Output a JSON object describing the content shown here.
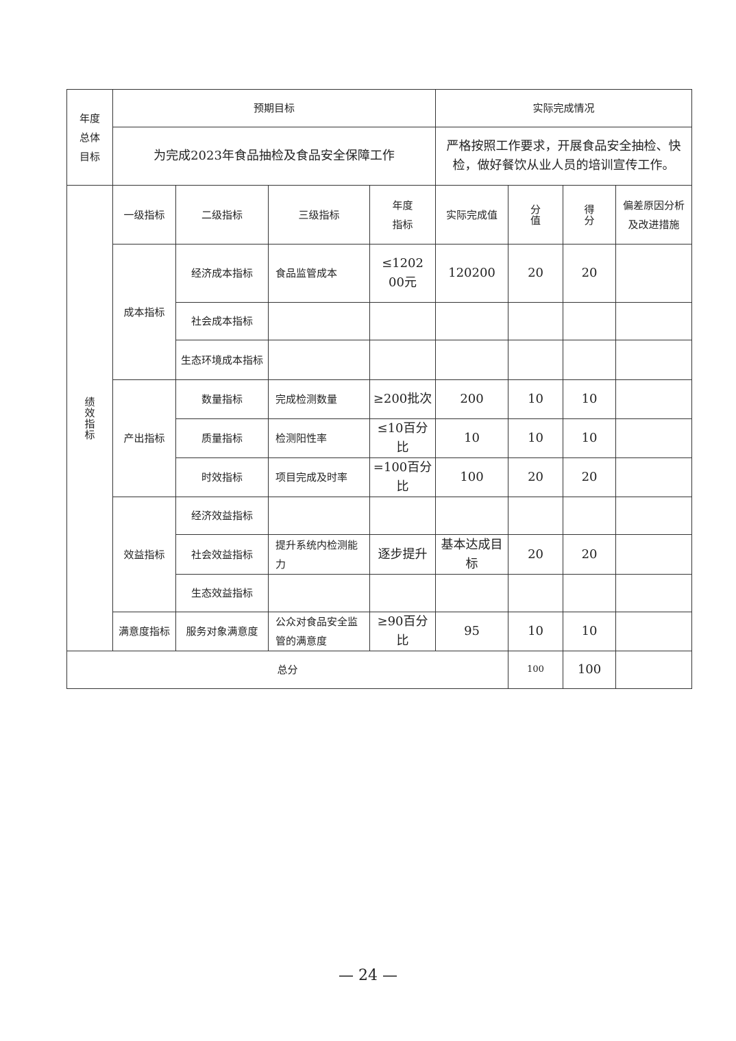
{
  "header": {
    "annual_goal_label": "年度总体目标",
    "expected_label": "预期目标",
    "actual_label": "实际完成情况",
    "expected_text": "为完成2023年食品抽检及食品安全保障工作",
    "actual_text": "严格按照工作要求，开展食品安全抽检、快检，做好餐饮从业人员的培训宣传工作。"
  },
  "perf_label": "绩效指标",
  "columns": [
    "一级指标",
    "二级指标",
    "三级指标",
    "年度指标",
    "实际完成值",
    "分值",
    "得分",
    "偏差原因分析及改进措施"
  ],
  "groups": {
    "cost": "成本指标",
    "output": "产出指标",
    "benefit": "效益指标",
    "satisfaction": "满意度指标"
  },
  "rows": [
    {
      "l2": "经济成本指标",
      "l3": "食品监管成本",
      "target": "≤120200元",
      "actual": "120200",
      "weight": "20",
      "score": "20",
      "note": ""
    },
    {
      "l2": "社会成本指标",
      "l3": "",
      "target": "",
      "actual": "",
      "weight": "",
      "score": "",
      "note": ""
    },
    {
      "l2": "生态环境成本指标",
      "l3": "",
      "target": "",
      "actual": "",
      "weight": "",
      "score": "",
      "note": ""
    },
    {
      "l2": "数量指标",
      "l3": "完成检测数量",
      "target": "≥200批次",
      "actual": "200",
      "weight": "10",
      "score": "10",
      "note": ""
    },
    {
      "l2": "质量指标",
      "l3": "检测阳性率",
      "target": "≤10百分比",
      "actual": "10",
      "weight": "10",
      "score": "10",
      "note": ""
    },
    {
      "l2": "时效指标",
      "l3": "项目完成及时率",
      "target": "=100百分比",
      "actual": "100",
      "weight": "20",
      "score": "20",
      "note": ""
    },
    {
      "l2": "经济效益指标",
      "l3": "",
      "target": "",
      "actual": "",
      "weight": "",
      "score": "",
      "note": ""
    },
    {
      "l2": "社会效益指标",
      "l3": "提升系统内检测能力",
      "target": "逐步提升",
      "actual": "基本达成目标",
      "weight": "20",
      "score": "20",
      "note": ""
    },
    {
      "l2": "生态效益指标",
      "l3": "",
      "target": "",
      "actual": "",
      "weight": "",
      "score": "",
      "note": ""
    },
    {
      "l2": "服务对象满意度",
      "l3": "公众对食品安全监管的满意度",
      "target": "≥90百分比",
      "actual": "95",
      "weight": "10",
      "score": "10",
      "note": ""
    }
  ],
  "total": {
    "label": "总分",
    "weight": "100",
    "score": "100",
    "note": ""
  },
  "page_number": "— 24 —"
}
